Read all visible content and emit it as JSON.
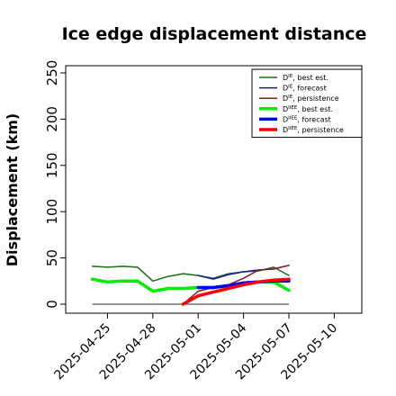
{
  "chart_data": {
    "type": "line",
    "title": "Ice edge displacement distance",
    "ylabel": "Displacement (km)",
    "xlabel": "",
    "ylim": [
      0,
      250
    ],
    "y_ticks": [
      0,
      50,
      100,
      150,
      200,
      250
    ],
    "x_ticks": [
      "2025-04-25",
      "2025-04-28",
      "2025-05-01",
      "2025-05-04",
      "2025-05-07",
      "2025-05-10"
    ],
    "highlighted_tick": "2025-05-01",
    "highlight_color": "#228B22",
    "grid": false,
    "legend_position": "top-right",
    "reference_line": {
      "x": [
        "2025-04-24",
        "2025-05-07"
      ],
      "y": 0,
      "color": "#555555"
    },
    "series": [
      {
        "name": "D^IE, best est.",
        "label_base": "D",
        "label_sup": "IE",
        "label_rest": ", best est.",
        "color": "#1b6b12",
        "width": 1.5,
        "x": [
          "2025-04-24",
          "2025-04-25",
          "2025-04-26",
          "2025-04-27",
          "2025-04-28",
          "2025-04-29",
          "2025-04-30",
          "2025-05-01",
          "2025-05-02",
          "2025-05-03",
          "2025-05-04",
          "2025-05-05",
          "2025-05-06",
          "2025-05-07"
        ],
        "y": [
          41,
          40,
          41,
          40,
          25,
          30,
          33,
          31,
          28,
          33,
          35,
          36,
          40,
          31
        ]
      },
      {
        "name": "D^IE, forecast",
        "label_base": "D",
        "label_sup": "IE",
        "label_rest": ", forecast",
        "color": "#1a1aa0",
        "width": 1.5,
        "x": [
          "2025-05-01",
          "2025-05-02",
          "2025-05-03",
          "2025-05-04",
          "2025-05-05",
          "2025-05-06",
          "2025-05-07"
        ],
        "y": [
          31,
          27,
          32,
          35,
          37,
          38,
          42
        ]
      },
      {
        "name": "D^IE, persistence",
        "label_base": "D",
        "label_sup": "IE",
        "label_rest": ", persistence",
        "color": "#8b1a1a",
        "width": 1.5,
        "x": [
          "2025-04-30",
          "2025-05-01",
          "2025-05-02",
          "2025-05-03",
          "2025-05-04",
          "2025-05-05",
          "2025-05-06",
          "2025-05-07"
        ],
        "y": [
          0,
          14,
          18,
          21,
          28,
          37,
          38,
          42
        ]
      },
      {
        "name": "D^IIEE, best est.",
        "label_base": "D",
        "label_sup": "IIEE",
        "label_rest": ", best est.",
        "color": "#00ee00",
        "width": 3.5,
        "x": [
          "2025-04-24",
          "2025-04-25",
          "2025-04-26",
          "2025-04-27",
          "2025-04-28",
          "2025-04-29",
          "2025-04-30",
          "2025-05-01",
          "2025-05-02",
          "2025-05-03",
          "2025-05-04",
          "2025-05-05",
          "2025-05-06",
          "2025-05-07"
        ],
        "y": [
          27,
          24,
          25,
          25,
          14,
          17,
          17,
          18,
          18,
          20,
          23,
          24,
          24,
          15
        ]
      },
      {
        "name": "D^IIEE, forecast",
        "label_base": "D",
        "label_sup": "IIEE",
        "label_rest": ", forecast",
        "color": "#0000ff",
        "width": 3.5,
        "x": [
          "2025-05-01",
          "2025-05-02",
          "2025-05-03",
          "2025-05-04",
          "2025-05-05",
          "2025-05-06",
          "2025-05-07"
        ],
        "y": [
          18,
          18,
          20,
          23,
          24,
          25,
          25
        ]
      },
      {
        "name": "D^IIEE, persistence",
        "label_base": "D",
        "label_sup": "IIEE",
        "label_rest": ", persistence",
        "color": "#ff0000",
        "width": 3.5,
        "x": [
          "2025-04-30",
          "2025-05-01",
          "2025-05-02",
          "2025-05-03",
          "2025-05-04",
          "2025-05-05",
          "2025-05-06",
          "2025-05-07"
        ],
        "y": [
          0,
          9,
          13,
          17,
          21,
          24,
          26,
          27
        ]
      }
    ]
  }
}
